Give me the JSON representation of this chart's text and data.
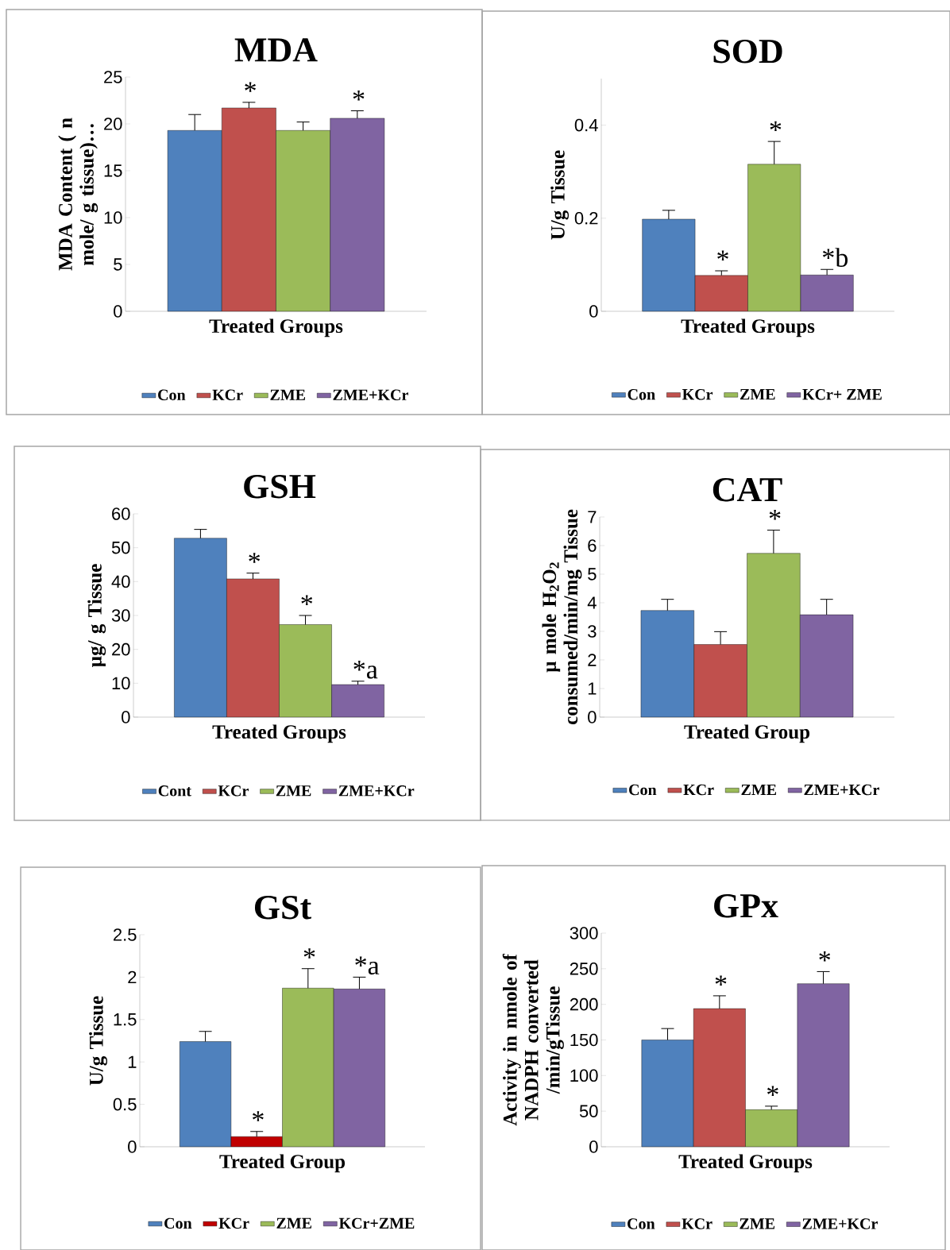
{
  "chart_data": [
    {
      "type": "bar",
      "title": "MDA",
      "xlabel": "Treated Groups",
      "ylabel": "MDA  Content ( n mole/ g tissue)…",
      "categories": [
        null
      ],
      "ylim": [
        0,
        25
      ],
      "yticks": [
        0,
        5,
        10,
        15,
        20,
        25
      ],
      "legend": "bottom",
      "series": [
        {
          "name": "Con",
          "color": "#4f81bd",
          "values": [
            19.3
          ],
          "errors": [
            1.7
          ]
        },
        {
          "name": "KCr",
          "color": "#c0504d",
          "values": [
            21.7
          ],
          "errors": [
            0.6
          ]
        },
        {
          "name": "ZME",
          "color": "#9bbb59",
          "values": [
            19.3
          ],
          "errors": [
            0.9
          ]
        },
        {
          "name": "ZME+KCr",
          "color": "#8064a2",
          "values": [
            20.6
          ],
          "errors": [
            0.8
          ]
        }
      ],
      "annotations": [
        {
          "text": "*",
          "y": 22.3
        },
        {
          "text": "*",
          "y": 21.4
        }
      ]
    },
    {
      "type": "bar",
      "title": "SOD",
      "xlabel": "Treated Groups",
      "ylabel": "U/g Tissue",
      "categories": [
        null
      ],
      "ylim": [
        0,
        0.5
      ],
      "yticks": [
        0,
        0.2,
        0.4
      ],
      "legend": "bottom",
      "series": [
        {
          "name": "Con",
          "color": "#4f81bd",
          "values": [
            0.198
          ],
          "errors": [
            0.019
          ]
        },
        {
          "name": "KCr",
          "color": "#c0504d",
          "values": [
            0.077
          ],
          "errors": [
            0.01
          ]
        },
        {
          "name": "ZME",
          "color": "#9bbb59",
          "values": [
            0.316
          ],
          "errors": [
            0.049
          ]
        },
        {
          "name": "KCr+ ZME",
          "color": "#8064a2",
          "values": [
            0.078
          ],
          "errors": [
            0.012
          ]
        }
      ],
      "annotations": [
        {
          "text": "*",
          "y": 0.087
        },
        {
          "text": "*",
          "y": 0.365
        },
        {
          "text": "*b",
          "y": 0.09
        }
      ]
    },
    {
      "type": "bar",
      "title": "GSH",
      "xlabel": "Treated Groups",
      "ylabel": "µg/ g Tissue",
      "categories": [
        null
      ],
      "ylim": [
        0,
        60
      ],
      "yticks": [
        0,
        10,
        20,
        30,
        40,
        50,
        60
      ],
      "legend": "bottom",
      "series": [
        {
          "name": "Cont",
          "color": "#4f81bd",
          "values": [
            52.8
          ],
          "errors": [
            2.6
          ]
        },
        {
          "name": "KCr",
          "color": "#c0504d",
          "values": [
            40.8
          ],
          "errors": [
            1.7
          ]
        },
        {
          "name": "ZME",
          "color": "#9bbb59",
          "values": [
            27.3
          ],
          "errors": [
            2.7
          ]
        },
        {
          "name": "ZME+KCr",
          "color": "#8064a2",
          "values": [
            9.6
          ],
          "errors": [
            1.0
          ]
        }
      ],
      "annotations": [
        {
          "text": "*",
          "y": 42.5
        },
        {
          "text": "*",
          "y": 30.0
        },
        {
          "text": "*a",
          "y": 10.6
        }
      ]
    },
    {
      "type": "bar",
      "title": "CAT",
      "xlabel": "Treated Group",
      "ylabel": "µ mole H$_{2}$O$_{2}$ consumed/min/mg Tissue",
      "categories": [
        null
      ],
      "ylim": [
        0,
        7
      ],
      "yticks": [
        0,
        1,
        2,
        3,
        4,
        5,
        6,
        7
      ],
      "legend": "bottom",
      "series": [
        {
          "name": "Con",
          "color": "#4f81bd",
          "values": [
            3.73
          ],
          "errors": [
            0.39
          ]
        },
        {
          "name": "KCr",
          "color": "#c0504d",
          "values": [
            2.54
          ],
          "errors": [
            0.45
          ]
        },
        {
          "name": "ZME",
          "color": "#9bbb59",
          "values": [
            5.73
          ],
          "errors": [
            0.81
          ]
        },
        {
          "name": "ZME+KCr",
          "color": "#8064a2",
          "values": [
            3.58
          ],
          "errors": [
            0.54
          ]
        }
      ],
      "annotations": [
        {
          "text": "*",
          "y": 6.54
        }
      ]
    },
    {
      "type": "bar",
      "title": "GSt",
      "xlabel": "Treated Group",
      "ylabel": "U/g Tissue",
      "categories": [
        null
      ],
      "ylim": [
        0,
        2.5
      ],
      "yticks": [
        0,
        0.5,
        1,
        1.5,
        2,
        2.5
      ],
      "legend": "bottom",
      "series": [
        {
          "name": "Con",
          "color": "#4f81bd",
          "values": [
            1.24
          ],
          "errors": [
            0.12
          ]
        },
        {
          "name": "KCr",
          "color": "#c00000",
          "values": [
            0.12
          ],
          "errors": [
            0.06
          ]
        },
        {
          "name": "ZME",
          "color": "#9bbb59",
          "values": [
            1.87
          ],
          "errors": [
            0.23
          ]
        },
        {
          "name": "KCr+ZME",
          "color": "#8064a2",
          "values": [
            1.86
          ],
          "errors": [
            0.14
          ]
        }
      ],
      "annotations": [
        {
          "text": "*",
          "y": 0.18
        },
        {
          "text": "*",
          "y": 2.1
        },
        {
          "text": "*a",
          "y": 2.0
        }
      ]
    },
    {
      "type": "bar",
      "title": "GPx",
      "xlabel": "Treated Groups",
      "ylabel": "Activity in nmole of NADPH converted /min/gTissue",
      "categories": [
        null
      ],
      "ylim": [
        0,
        300
      ],
      "yticks": [
        0,
        50,
        100,
        150,
        200,
        250,
        300
      ],
      "legend": "bottom",
      "series": [
        {
          "name": "Con",
          "color": "#4f81bd",
          "values": [
            150
          ],
          "errors": [
            16
          ]
        },
        {
          "name": "KCr",
          "color": "#c0504d",
          "values": [
            194
          ],
          "errors": [
            18
          ]
        },
        {
          "name": "ZME",
          "color": "#9bbb59",
          "values": [
            52
          ],
          "errors": [
            5
          ]
        },
        {
          "name": "ZME+KCr",
          "color": "#8064a2",
          "values": [
            229
          ],
          "errors": [
            17
          ]
        }
      ],
      "annotations": [
        {
          "text": "*",
          "y": 212
        },
        {
          "text": "*",
          "y": 57
        },
        {
          "text": "*",
          "y": 246
        }
      ]
    }
  ]
}
